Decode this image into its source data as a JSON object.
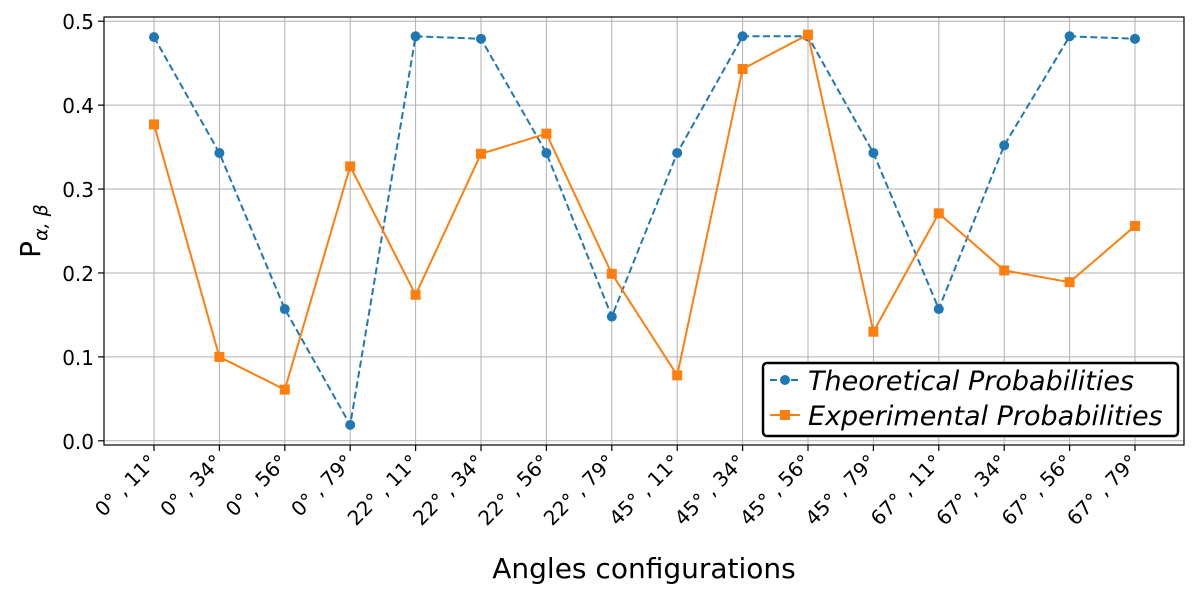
{
  "chart_data": {
    "type": "line",
    "xlabel": "Angles configurations",
    "ylabel": "P",
    "ylabel_sub": "α, β",
    "categories": [
      "0° , 11°",
      "0° , 34°",
      "0° , 56°",
      "0° , 79°",
      "22° , 11°",
      "22° , 34°",
      "22° , 56°",
      "22° , 79°",
      "45° , 11°",
      "45° , 34°",
      "45° , 56°",
      "45° , 79°",
      "67° , 11°",
      "67° , 34°",
      "67° , 56°",
      "67° , 79°"
    ],
    "ylim": [
      -0.005,
      0.505
    ],
    "yticks": [
      0.0,
      0.1,
      0.2,
      0.3,
      0.4,
      0.5
    ],
    "ytick_labels": [
      "0.0",
      "0.1",
      "0.2",
      "0.3",
      "0.4",
      "0.5"
    ],
    "grid": true,
    "legend_position": "bottom-right",
    "series": [
      {
        "name": "Theoretical Probabilities",
        "color": "#1f77b4",
        "line_style": "dashed",
        "marker": "circle",
        "values": [
          0.481,
          0.343,
          0.157,
          0.019,
          0.482,
          0.479,
          0.343,
          0.148,
          0.343,
          0.482,
          0.482,
          0.343,
          0.157,
          0.352,
          0.482,
          0.479
        ]
      },
      {
        "name": "Experimental Probabilities",
        "color": "#ff7f0e",
        "line_style": "solid",
        "marker": "square",
        "values": [
          0.377,
          0.1,
          0.061,
          0.327,
          0.174,
          0.342,
          0.366,
          0.199,
          0.078,
          0.443,
          0.484,
          0.13,
          0.271,
          0.203,
          0.189,
          0.256
        ]
      }
    ]
  }
}
